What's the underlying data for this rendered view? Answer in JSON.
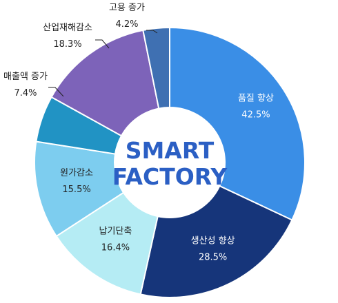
{
  "chart_data": {
    "type": "pie",
    "center_label": [
      "SMART",
      "FACTORY"
    ],
    "slices": [
      {
        "name": "품질 향상",
        "value": 42.5,
        "value_label": "42.5%",
        "color": "#3a8ee6",
        "text_color": "#ffffff"
      },
      {
        "name": "생산성 향상",
        "value": 28.5,
        "value_label": "28.5%",
        "color": "#16357a",
        "text_color": "#ffffff"
      },
      {
        "name": "납기단축",
        "value": 16.4,
        "value_label": "16.4%",
        "color": "#b5ecf4",
        "text_color": "#222222"
      },
      {
        "name": "원가감소",
        "value": 15.5,
        "value_label": "15.5%",
        "color": "#7dcdef",
        "text_color": "#222222"
      },
      {
        "name": "매출액 증가",
        "value": 7.4,
        "value_label": "7.4%",
        "color": "#2193c4",
        "text_color": "#222222"
      },
      {
        "name": "산업재해감소",
        "value": 18.3,
        "value_label": "18.3%",
        "color": "#7d63b9",
        "text_color": "#222222"
      },
      {
        "name": "고용 증가",
        "value": 4.2,
        "value_label": "4.2%",
        "color": "#3f70b2",
        "text_color": "#222222"
      }
    ]
  },
  "colors": {
    "center_text": "#2b5fc4",
    "center_fill": "#ffffff",
    "leader_line": "#222222"
  }
}
